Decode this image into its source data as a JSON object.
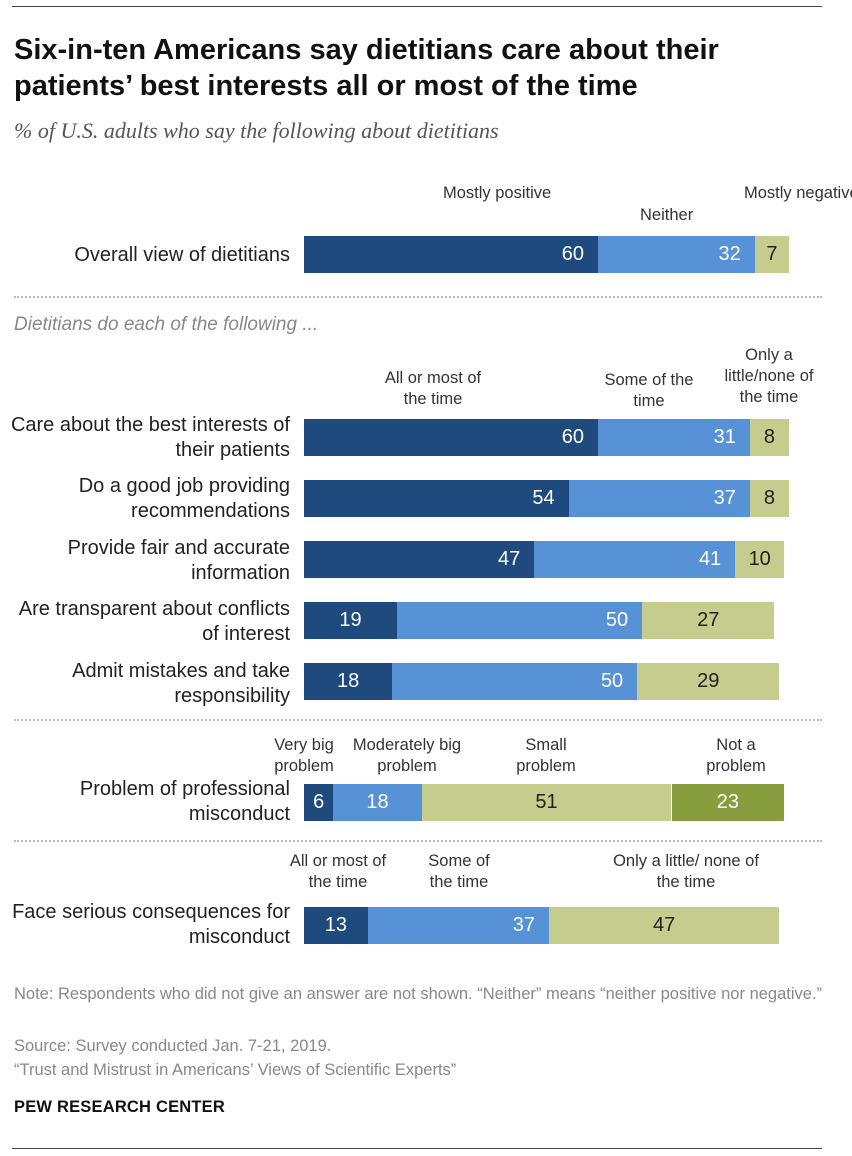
{
  "title": "Six-in-ten Americans say dietitians care about their patients’ best interests all or most of the time",
  "subtitle": "% of U.S. adults who say the following about dietitians",
  "section_label": "Dietitians do each of the following ...",
  "colors": {
    "dark": "#1f4a7e",
    "mid": "#5792d6",
    "light": "#c5cc8e",
    "olive": "#889d3d"
  },
  "chart_data": {
    "type": "bar",
    "orientation": "horizontal-stacked",
    "groups": [
      {
        "headers": [
          "Mostly positive",
          "Neither",
          "Mostly negative"
        ],
        "rows": [
          {
            "label": "Overall view of dietitians",
            "values": [
              60,
              32,
              7
            ]
          }
        ]
      },
      {
        "headers": [
          "All or most of the time",
          "Some of the time",
          "Only a little/none of the time"
        ],
        "rows": [
          {
            "label": "Care about the best interests of their patients",
            "values": [
              60,
              31,
              8
            ]
          },
          {
            "label": "Do a good job providing recommendations",
            "values": [
              54,
              37,
              8
            ]
          },
          {
            "label": "Provide fair and accurate information",
            "values": [
              47,
              41,
              10
            ]
          },
          {
            "label": "Are transparent about conflicts of interest",
            "values": [
              19,
              50,
              27
            ]
          },
          {
            "label": "Admit mistakes and take responsibility",
            "values": [
              18,
              50,
              29
            ]
          }
        ]
      },
      {
        "headers": [
          "Very big problem",
          "Moderately big problem",
          "Small problem",
          "Not a problem"
        ],
        "rows": [
          {
            "label": "Problem of professional misconduct",
            "values": [
              6,
              18,
              51,
              23
            ]
          }
        ]
      },
      {
        "headers": [
          "All or most of the time",
          "Some of the time",
          "Only a little/ none of the time"
        ],
        "rows": [
          {
            "label": "Face serious consequences for misconduct",
            "values": [
              13,
              37,
              47
            ]
          }
        ]
      }
    ]
  },
  "notes": {
    "note": "Note: Respondents who did not give an answer are not shown. “Neither” means “neither positive nor negative.”",
    "source": "Source: Survey conducted Jan. 7-21, 2019.",
    "report": "“Trust and Mistrust in Americans’ Views of Scientific Experts”"
  },
  "brand": "PEW RESEARCH CENTER"
}
